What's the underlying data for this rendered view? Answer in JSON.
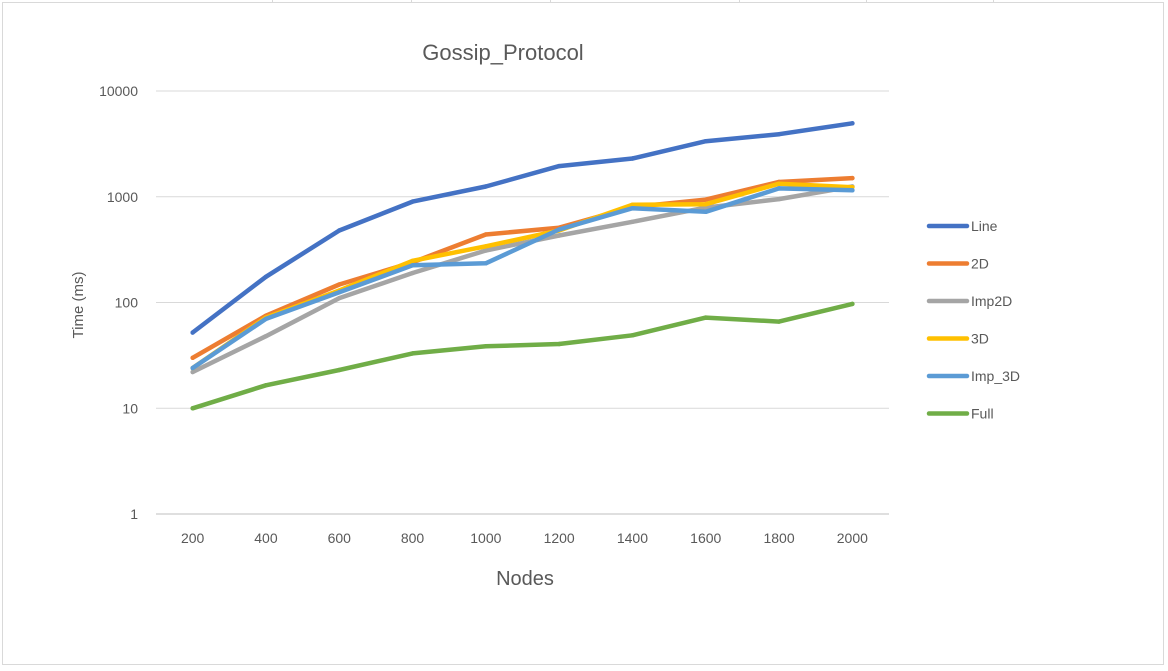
{
  "chart_data": {
    "type": "line",
    "title": "Gossip_Protocol",
    "xlabel": "Nodes",
    "ylabel": "Time (ms)",
    "yscale": "log",
    "ylim": [
      1,
      10000
    ],
    "grid": true,
    "legend_position": "right",
    "categories": [
      "200",
      "400",
      "600",
      "800",
      "1000",
      "1200",
      "1400",
      "1600",
      "1800",
      "2000"
    ],
    "y_ticks": [
      "1",
      "10",
      "100",
      "1000",
      "10000"
    ],
    "series": [
      {
        "name": "Line",
        "color": "#4472C4",
        "values": [
          52,
          175,
          480,
          900,
          1250,
          1950,
          2300,
          3350,
          3900,
          4950
        ]
      },
      {
        "name": "2D",
        "color": "#ED7D31",
        "values": [
          30,
          75,
          148,
          240,
          440,
          510,
          800,
          940,
          1380,
          1500
        ]
      },
      {
        "name": "Imp2D",
        "color": "#A5A5A5",
        "values": [
          22,
          48,
          110,
          190,
          310,
          430,
          580,
          790,
          950,
          1250
        ]
      },
      {
        "name": "3D",
        "color": "#FFC000",
        "values": [
          24,
          72,
          130,
          248,
          340,
          480,
          840,
          850,
          1330,
          1230
        ]
      },
      {
        "name": "Imp_3D",
        "color": "#5B9BD5",
        "values": [
          24,
          70,
          125,
          225,
          235,
          490,
          780,
          720,
          1200,
          1150
        ]
      },
      {
        "name": "Full",
        "color": "#70AD47",
        "values": [
          10,
          16.5,
          23,
          33,
          38.5,
          40.5,
          49,
          72,
          66,
          97
        ]
      }
    ]
  }
}
